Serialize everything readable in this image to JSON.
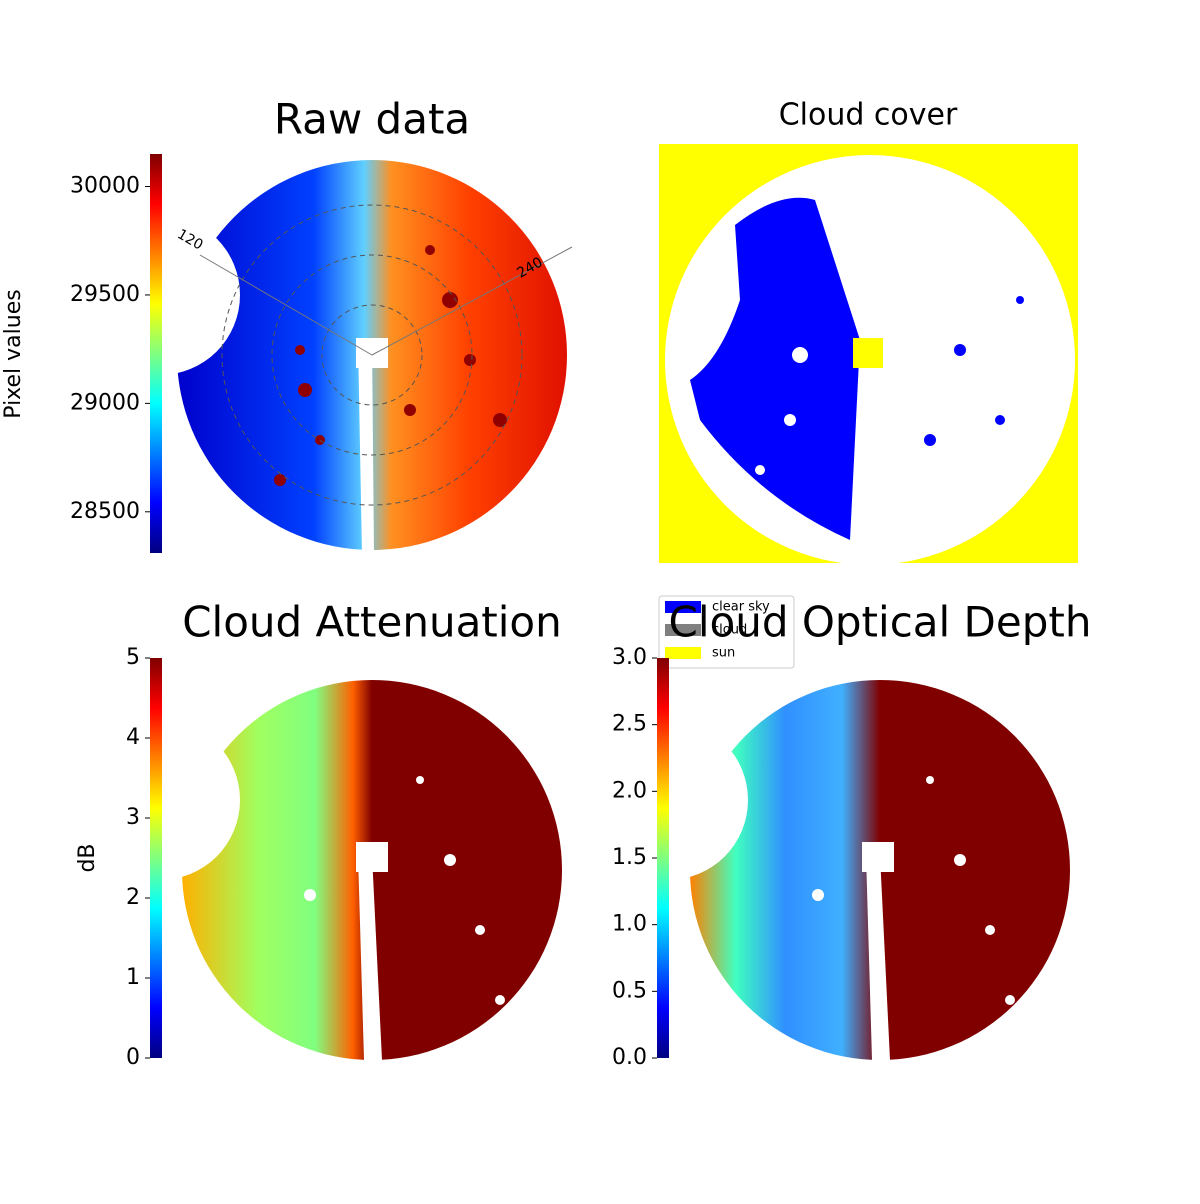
{
  "chart_data": [
    {
      "type": "image",
      "title": "Raw data",
      "colormap": "jet",
      "ylabel": "Pixel values",
      "ylim": [
        28310,
        30150
      ],
      "yticks": [
        28500,
        29000,
        29500,
        30000
      ],
      "annotations": [
        "120",
        "240"
      ]
    },
    {
      "type": "image",
      "title": "Cloud cover",
      "series": [
        {
          "name": "clear sky",
          "color": "#0000ff"
        },
        {
          "name": "cloud",
          "color": "#808080"
        },
        {
          "name": "sun",
          "color": "#ffff00"
        }
      ]
    },
    {
      "type": "image",
      "title": "Cloud Attenuation",
      "colormap": "jet",
      "ylabel": "dB",
      "ylim": [
        0,
        5
      ],
      "yticks": [
        0,
        1,
        2,
        3,
        4,
        5
      ]
    },
    {
      "type": "image",
      "title": "Cloud Optical Depth",
      "colormap": "jet",
      "ylim": [
        0,
        3
      ],
      "yticks": [
        {
          "value": 0,
          "label": "0.0"
        },
        0.5,
        {
          "value": 1,
          "label": "1.0"
        },
        1.5,
        {
          "value": 2,
          "label": "2.0"
        },
        2.5,
        {
          "value": 3,
          "label": "3.0"
        }
      ]
    }
  ]
}
